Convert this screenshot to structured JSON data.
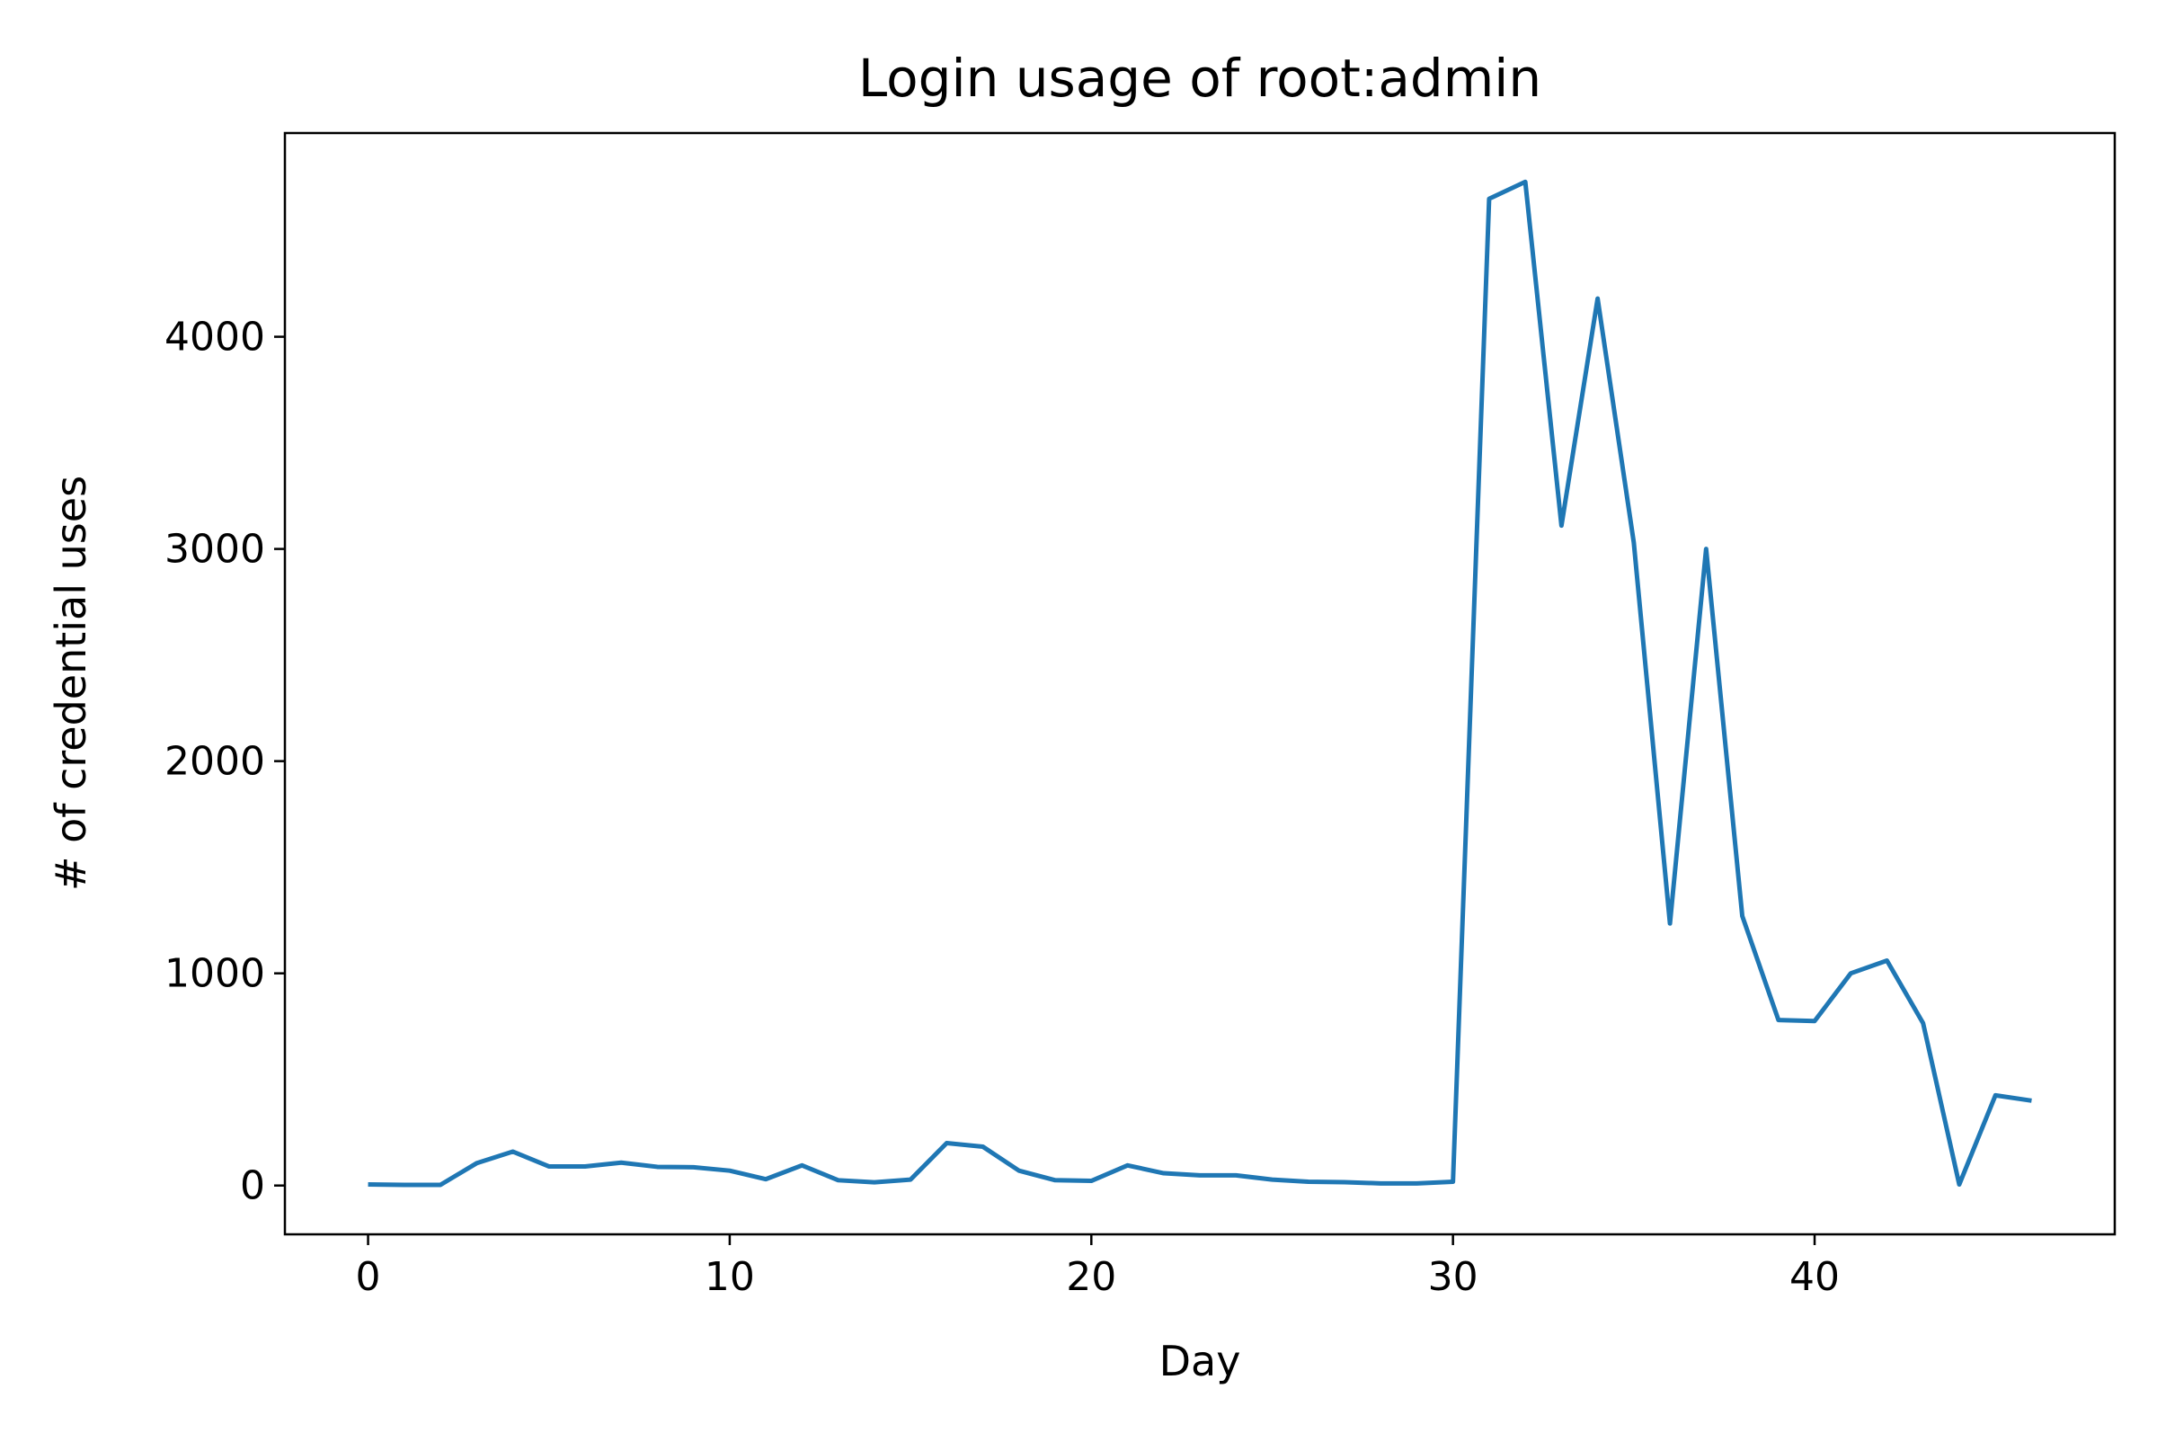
{
  "chart_data": {
    "type": "line",
    "title": "Login usage of root:admin",
    "xlabel": "Day",
    "ylabel": "# of credential uses",
    "xlim": [
      -2.3,
      48.3
    ],
    "ylim": [
      -230,
      4960
    ],
    "x_ticks": [
      0,
      10,
      20,
      30,
      40
    ],
    "y_ticks": [
      0,
      1000,
      2000,
      3000,
      4000
    ],
    "grid": false,
    "legend": "none",
    "series_color": "#1f77b4",
    "series": [
      {
        "x": [
          0,
          1,
          2,
          3,
          4,
          5,
          6,
          7,
          8,
          9,
          10,
          11,
          12,
          13,
          14,
          15,
          16,
          17,
          18,
          19,
          20,
          21,
          22,
          23,
          24,
          25,
          26,
          27,
          28,
          29,
          30,
          31,
          32,
          33,
          34,
          35,
          36,
          37,
          38,
          39,
          40,
          41,
          42,
          43,
          44,
          45,
          46
        ],
        "values": [
          5,
          3,
          3,
          105,
          160,
          90,
          90,
          108,
          88,
          86,
          70,
          30,
          95,
          25,
          15,
          28,
          200,
          183,
          70,
          25,
          22,
          95,
          58,
          48,
          48,
          28,
          18,
          16,
          10,
          10,
          18,
          4650,
          4730,
          3110,
          4180,
          3030,
          1235,
          3000,
          1270,
          780,
          775,
          1000,
          1060,
          765,
          5,
          425,
          400
        ]
      }
    ]
  }
}
